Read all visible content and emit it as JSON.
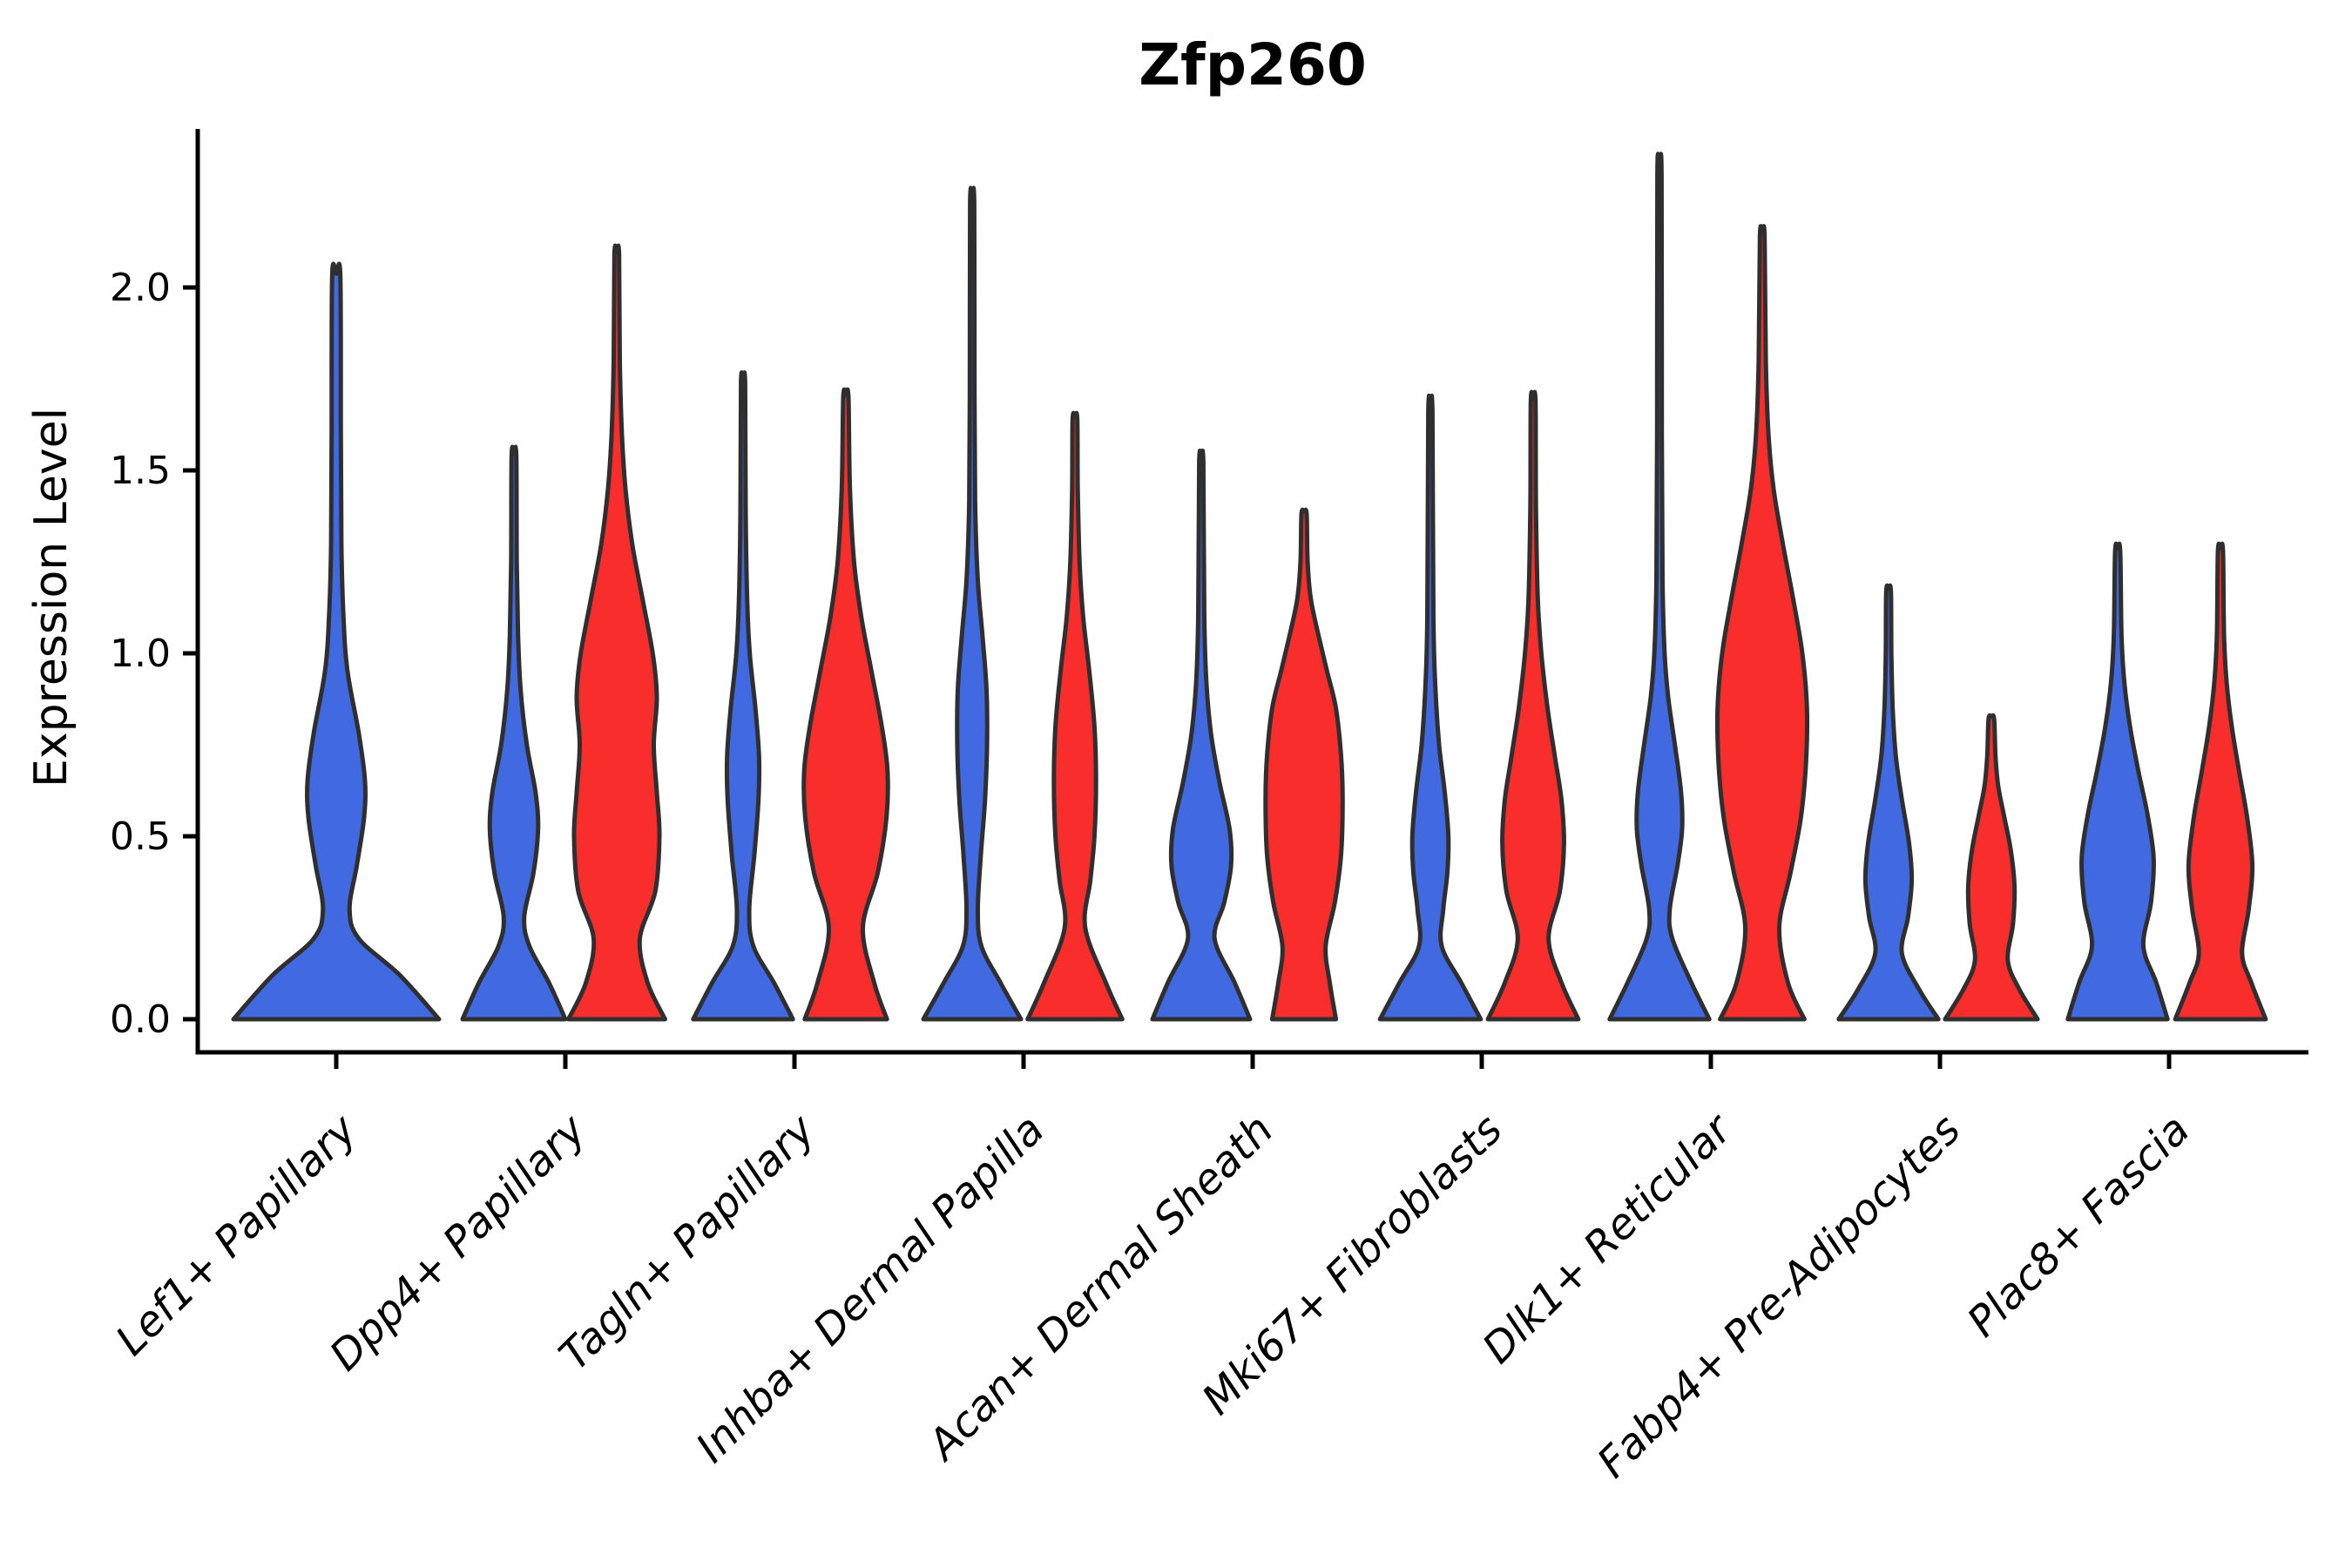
{
  "chart_data": {
    "type": "violin",
    "title": "Zfp260",
    "ylabel": "Expression Level",
    "xlabel": "",
    "ylim": [
      -0.1,
      2.41
    ],
    "yticks": [
      0.0,
      0.5,
      1.0,
      1.5,
      2.0
    ],
    "ytick_labels": [
      "0.0",
      "0.5",
      "1.0",
      "1.5",
      "2.0"
    ],
    "grid": false,
    "legend": "none",
    "categories": [
      "Lef1+ Papillary",
      "Dpp4+ Papillary",
      "Tagln+ Papillary",
      "Inhba+ Dermal Papilla",
      "Acan+ Dermal Sheath",
      "Mki67+ Fibroblasts",
      "Dlk1+ Reticular",
      "Fabp4+ Pre-Adipocytes",
      "Plac8+ Fascia"
    ],
    "series_colors": {
      "blue": "#4169E1",
      "red": "#FA2D2D"
    },
    "edge_color": "#2f2f2f",
    "violins": [
      {
        "c": 0,
        "category": "Lef1+ Papillary",
        "series": "blue",
        "side": "center",
        "max": 2.03,
        "profile": [
          [
            0,
            1.0
          ],
          [
            0.12,
            0.62
          ],
          [
            0.22,
            0.22
          ],
          [
            0.3,
            0.13
          ],
          [
            0.42,
            0.2
          ],
          [
            0.55,
            0.27
          ],
          [
            0.65,
            0.28
          ],
          [
            0.78,
            0.22
          ],
          [
            0.95,
            0.11
          ],
          [
            1.1,
            0.07
          ],
          [
            1.3,
            0.05
          ],
          [
            1.6,
            0.045
          ],
          [
            2.03,
            0.04
          ]
        ]
      },
      {
        "c": 1,
        "category": "Dpp4+ Papillary",
        "series": "blue",
        "side": "left",
        "max": 1.54,
        "profile": [
          [
            0,
            1.0
          ],
          [
            0.1,
            0.68
          ],
          [
            0.2,
            0.3
          ],
          [
            0.28,
            0.2
          ],
          [
            0.4,
            0.38
          ],
          [
            0.52,
            0.47
          ],
          [
            0.62,
            0.42
          ],
          [
            0.75,
            0.25
          ],
          [
            0.9,
            0.13
          ],
          [
            1.05,
            0.08
          ],
          [
            1.25,
            0.055
          ],
          [
            1.54,
            0.045
          ]
        ]
      },
      {
        "c": 1,
        "category": "Dpp4+ Papillary",
        "series": "red",
        "side": "right",
        "max": 2.09,
        "profile": [
          [
            0,
            0.94
          ],
          [
            0.1,
            0.6
          ],
          [
            0.22,
            0.45
          ],
          [
            0.35,
            0.75
          ],
          [
            0.5,
            0.83
          ],
          [
            0.62,
            0.78
          ],
          [
            0.75,
            0.72
          ],
          [
            0.88,
            0.78
          ],
          [
            1.0,
            0.7
          ],
          [
            1.15,
            0.5
          ],
          [
            1.3,
            0.3
          ],
          [
            1.45,
            0.17
          ],
          [
            1.6,
            0.1
          ],
          [
            1.8,
            0.06
          ],
          [
            2.09,
            0.045
          ]
        ]
      },
      {
        "c": 2,
        "category": "Tagln+ Papillary",
        "series": "blue",
        "side": "left",
        "max": 1.74,
        "profile": [
          [
            0,
            0.97
          ],
          [
            0.1,
            0.6
          ],
          [
            0.2,
            0.2
          ],
          [
            0.3,
            0.12
          ],
          [
            0.45,
            0.22
          ],
          [
            0.6,
            0.3
          ],
          [
            0.72,
            0.31
          ],
          [
            0.85,
            0.24
          ],
          [
            1.0,
            0.13
          ],
          [
            1.15,
            0.08
          ],
          [
            1.4,
            0.05
          ],
          [
            1.74,
            0.04
          ]
        ]
      },
      {
        "c": 2,
        "category": "Tagln+ Papillary",
        "series": "red",
        "side": "right",
        "max": 1.7,
        "profile": [
          [
            0,
            0.8
          ],
          [
            0.1,
            0.55
          ],
          [
            0.25,
            0.33
          ],
          [
            0.4,
            0.62
          ],
          [
            0.55,
            0.79
          ],
          [
            0.68,
            0.81
          ],
          [
            0.8,
            0.7
          ],
          [
            0.95,
            0.5
          ],
          [
            1.1,
            0.3
          ],
          [
            1.25,
            0.16
          ],
          [
            1.45,
            0.08
          ],
          [
            1.7,
            0.05
          ]
        ]
      },
      {
        "c": 3,
        "category": "Inhba+ Dermal Papilla",
        "series": "blue",
        "side": "left",
        "max": 2.23,
        "profile": [
          [
            0,
            0.95
          ],
          [
            0.1,
            0.55
          ],
          [
            0.2,
            0.18
          ],
          [
            0.3,
            0.11
          ],
          [
            0.45,
            0.17
          ],
          [
            0.6,
            0.25
          ],
          [
            0.75,
            0.29
          ],
          [
            0.9,
            0.28
          ],
          [
            1.05,
            0.2
          ],
          [
            1.2,
            0.11
          ],
          [
            1.4,
            0.06
          ],
          [
            1.7,
            0.045
          ],
          [
            2.23,
            0.04
          ]
        ]
      },
      {
        "c": 3,
        "category": "Inhba+ Dermal Papilla",
        "series": "red",
        "side": "right",
        "max": 1.64,
        "profile": [
          [
            0,
            0.92
          ],
          [
            0.1,
            0.6
          ],
          [
            0.25,
            0.2
          ],
          [
            0.38,
            0.3
          ],
          [
            0.5,
            0.38
          ],
          [
            0.65,
            0.41
          ],
          [
            0.8,
            0.38
          ],
          [
            0.95,
            0.28
          ],
          [
            1.1,
            0.16
          ],
          [
            1.25,
            0.09
          ],
          [
            1.45,
            0.055
          ],
          [
            1.64,
            0.045
          ]
        ]
      },
      {
        "c": 4,
        "category": "Acan+ Dermal Sheath",
        "series": "blue",
        "side": "left",
        "max": 1.52,
        "profile": [
          [
            0,
            0.95
          ],
          [
            0.1,
            0.65
          ],
          [
            0.22,
            0.26
          ],
          [
            0.32,
            0.45
          ],
          [
            0.42,
            0.58
          ],
          [
            0.52,
            0.55
          ],
          [
            0.65,
            0.35
          ],
          [
            0.78,
            0.19
          ],
          [
            0.92,
            0.1
          ],
          [
            1.1,
            0.06
          ],
          [
            1.52,
            0.04
          ]
        ]
      },
      {
        "c": 4,
        "category": "Acan+ Dermal Sheath",
        "series": "red",
        "side": "right",
        "max": 1.38,
        "profile": [
          [
            0,
            0.62
          ],
          [
            0.1,
            0.5
          ],
          [
            0.2,
            0.42
          ],
          [
            0.32,
            0.6
          ],
          [
            0.45,
            0.72
          ],
          [
            0.6,
            0.75
          ],
          [
            0.72,
            0.72
          ],
          [
            0.85,
            0.62
          ],
          [
            0.95,
            0.45
          ],
          [
            1.05,
            0.28
          ],
          [
            1.15,
            0.13
          ],
          [
            1.25,
            0.07
          ],
          [
            1.38,
            0.05
          ]
        ]
      },
      {
        "c": 5,
        "category": "Mki67+ Fibroblasts",
        "series": "blue",
        "side": "left",
        "max": 1.66,
        "profile": [
          [
            0,
            0.98
          ],
          [
            0.1,
            0.6
          ],
          [
            0.2,
            0.22
          ],
          [
            0.3,
            0.25
          ],
          [
            0.4,
            0.33
          ],
          [
            0.5,
            0.35
          ],
          [
            0.62,
            0.28
          ],
          [
            0.75,
            0.17
          ],
          [
            0.9,
            0.1
          ],
          [
            1.1,
            0.06
          ],
          [
            1.66,
            0.04
          ]
        ]
      },
      {
        "c": 5,
        "category": "Mki67+ Fibroblasts",
        "series": "red",
        "side": "right",
        "max": 1.69,
        "profile": [
          [
            0,
            0.88
          ],
          [
            0.1,
            0.55
          ],
          [
            0.22,
            0.3
          ],
          [
            0.35,
            0.52
          ],
          [
            0.48,
            0.6
          ],
          [
            0.6,
            0.55
          ],
          [
            0.72,
            0.42
          ],
          [
            0.85,
            0.28
          ],
          [
            1.0,
            0.16
          ],
          [
            1.15,
            0.09
          ],
          [
            1.4,
            0.055
          ],
          [
            1.69,
            0.045
          ]
        ]
      },
      {
        "c": 6,
        "category": "Dlk1+ Reticular",
        "series": "blue",
        "side": "left",
        "max": 2.31,
        "profile": [
          [
            0,
            0.97
          ],
          [
            0.1,
            0.62
          ],
          [
            0.22,
            0.25
          ],
          [
            0.3,
            0.2
          ],
          [
            0.42,
            0.35
          ],
          [
            0.52,
            0.44
          ],
          [
            0.62,
            0.42
          ],
          [
            0.75,
            0.3
          ],
          [
            0.88,
            0.17
          ],
          [
            1.0,
            0.1
          ],
          [
            1.2,
            0.06
          ],
          [
            1.6,
            0.045
          ],
          [
            2.31,
            0.04
          ]
        ]
      },
      {
        "c": 6,
        "category": "Dlk1+ Reticular",
        "series": "red",
        "side": "right",
        "max": 2.14,
        "profile": [
          [
            0,
            0.82
          ],
          [
            0.1,
            0.5
          ],
          [
            0.25,
            0.33
          ],
          [
            0.4,
            0.55
          ],
          [
            0.55,
            0.75
          ],
          [
            0.7,
            0.85
          ],
          [
            0.85,
            0.87
          ],
          [
            1.0,
            0.78
          ],
          [
            1.15,
            0.6
          ],
          [
            1.3,
            0.4
          ],
          [
            1.45,
            0.22
          ],
          [
            1.6,
            0.12
          ],
          [
            1.8,
            0.07
          ],
          [
            2.14,
            0.045
          ]
        ]
      },
      {
        "c": 7,
        "category": "Fabp4+ Pre-Adipocytes",
        "series": "blue",
        "side": "left",
        "max": 1.17,
        "profile": [
          [
            0,
            0.97
          ],
          [
            0.08,
            0.6
          ],
          [
            0.18,
            0.26
          ],
          [
            0.28,
            0.38
          ],
          [
            0.38,
            0.45
          ],
          [
            0.48,
            0.4
          ],
          [
            0.6,
            0.26
          ],
          [
            0.72,
            0.14
          ],
          [
            0.85,
            0.08
          ],
          [
            1.0,
            0.055
          ],
          [
            1.17,
            0.045
          ]
        ]
      },
      {
        "c": 7,
        "category": "Fabp4+ Pre-Adipocytes",
        "series": "red",
        "side": "right",
        "max": 0.82,
        "profile": [
          [
            0,
            0.9
          ],
          [
            0.08,
            0.55
          ],
          [
            0.16,
            0.32
          ],
          [
            0.26,
            0.42
          ],
          [
            0.36,
            0.45
          ],
          [
            0.46,
            0.38
          ],
          [
            0.56,
            0.24
          ],
          [
            0.64,
            0.13
          ],
          [
            0.72,
            0.08
          ],
          [
            0.82,
            0.055
          ]
        ]
      },
      {
        "c": 8,
        "category": "Plac8+ Fascia",
        "series": "blue",
        "side": "left",
        "max": 1.28,
        "profile": [
          [
            0,
            0.97
          ],
          [
            0.1,
            0.75
          ],
          [
            0.2,
            0.5
          ],
          [
            0.32,
            0.65
          ],
          [
            0.44,
            0.7
          ],
          [
            0.56,
            0.58
          ],
          [
            0.68,
            0.4
          ],
          [
            0.8,
            0.24
          ],
          [
            0.92,
            0.13
          ],
          [
            1.05,
            0.075
          ],
          [
            1.28,
            0.05
          ]
        ]
      },
      {
        "c": 8,
        "category": "Plac8+ Fascia",
        "series": "red",
        "side": "right",
        "max": 1.28,
        "profile": [
          [
            0,
            0.88
          ],
          [
            0.1,
            0.6
          ],
          [
            0.18,
            0.42
          ],
          [
            0.3,
            0.55
          ],
          [
            0.42,
            0.62
          ],
          [
            0.55,
            0.52
          ],
          [
            0.68,
            0.36
          ],
          [
            0.8,
            0.22
          ],
          [
            0.92,
            0.12
          ],
          [
            1.05,
            0.07
          ],
          [
            1.28,
            0.05
          ]
        ]
      }
    ]
  }
}
